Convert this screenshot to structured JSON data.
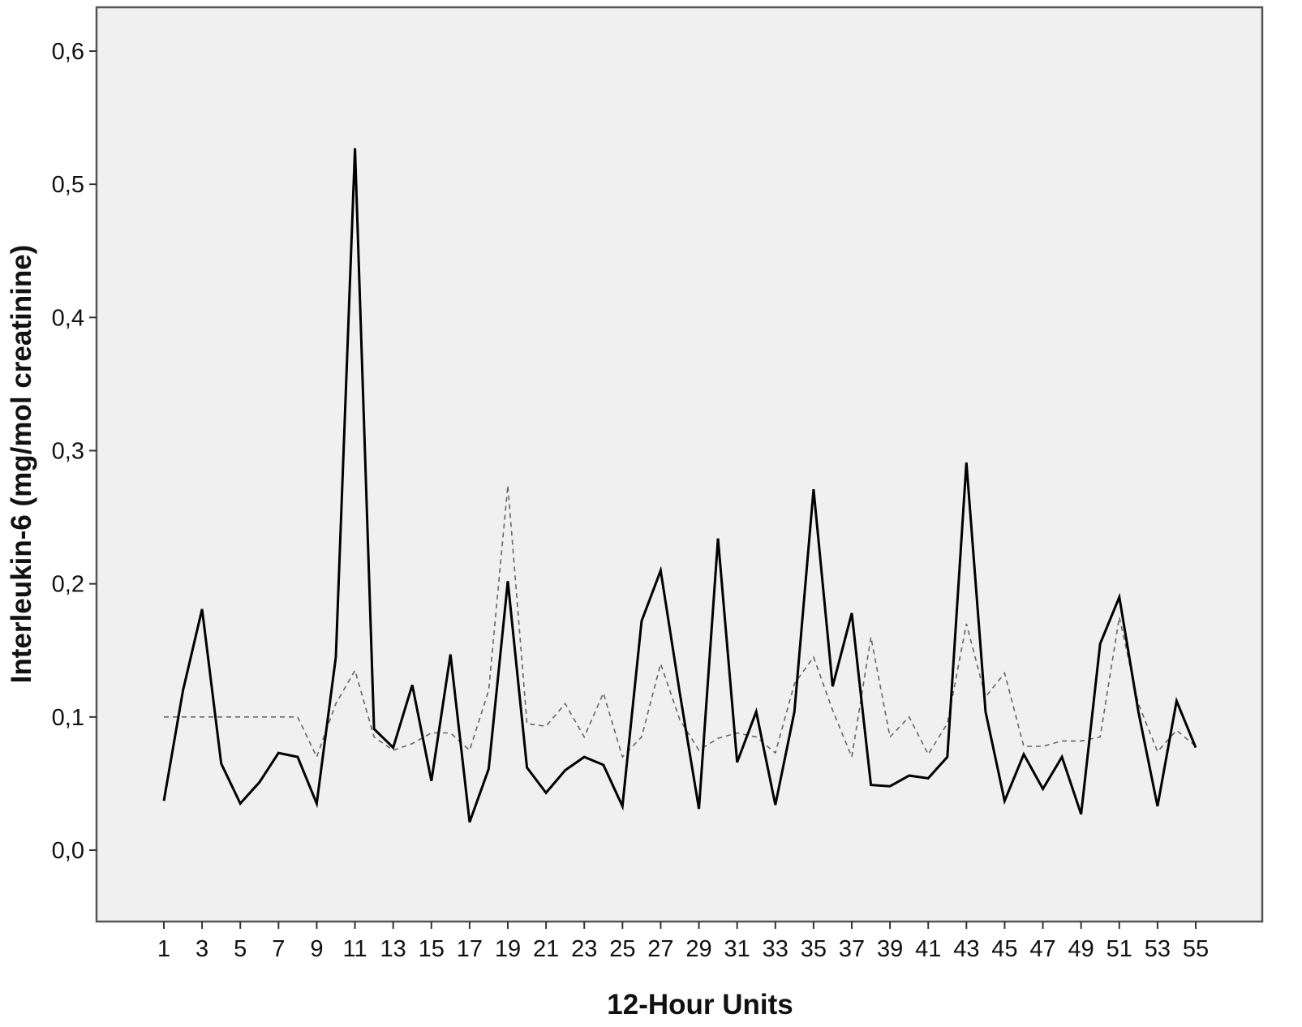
{
  "chart_data": {
    "type": "line",
    "title": "",
    "xlabel": "12-Hour Units",
    "ylabel": "Interleukin-6 (mg/mol creatinine)",
    "xlim": [
      1,
      55
    ],
    "ylim": [
      0.0,
      0.6
    ],
    "x_ticks": [
      1,
      3,
      5,
      7,
      9,
      11,
      13,
      15,
      17,
      19,
      21,
      23,
      25,
      27,
      29,
      31,
      33,
      35,
      37,
      39,
      41,
      43,
      45,
      47,
      49,
      51,
      53,
      55
    ],
    "x_tick_labels": [
      "1",
      "3",
      "5",
      "7",
      "9",
      "11",
      "13",
      "15",
      "17",
      "19",
      "21",
      "23",
      "25",
      "27",
      "29",
      "31",
      "33",
      "35",
      "37",
      "39",
      "41",
      "43",
      "45",
      "47",
      "49",
      "51",
      "53",
      "55"
    ],
    "y_ticks": [
      0.0,
      0.1,
      0.2,
      0.3,
      0.4,
      0.5,
      0.6
    ],
    "y_tick_labels": [
      "0,0",
      "0,1",
      "0,2",
      "0,3",
      "0,4",
      "0,5",
      "0,6"
    ],
    "grid": false,
    "legend": false,
    "plot_background": "#f0f0f0",
    "frame_color": "#555555",
    "x": [
      1,
      2,
      3,
      4,
      5,
      6,
      7,
      8,
      9,
      10,
      11,
      12,
      13,
      14,
      15,
      16,
      17,
      18,
      19,
      20,
      21,
      22,
      23,
      24,
      25,
      26,
      27,
      28,
      29,
      30,
      31,
      32,
      33,
      34,
      35,
      36,
      37,
      38,
      39,
      40,
      41,
      42,
      43,
      44,
      45,
      46,
      47,
      48,
      49,
      50,
      51,
      52,
      53,
      54,
      55
    ],
    "series": [
      {
        "style": "solid",
        "color": "#000000",
        "values": [
          0.037,
          0.12,
          0.181,
          0.065,
          0.035,
          0.051,
          0.073,
          0.07,
          0.035,
          0.145,
          0.527,
          0.091,
          0.077,
          0.124,
          0.052,
          0.147,
          0.021,
          0.061,
          0.202,
          0.062,
          0.043,
          0.06,
          0.07,
          0.064,
          0.033,
          0.172,
          0.21,
          0.118,
          0.031,
          0.234,
          0.066,
          0.104,
          0.034,
          0.104,
          0.271,
          0.123,
          0.178,
          0.049,
          0.048,
          0.056,
          0.054,
          0.07,
          0.291,
          0.104,
          0.037,
          0.072,
          0.046,
          0.07,
          0.027,
          0.155,
          0.19,
          0.104,
          0.033,
          0.112,
          0.077
        ]
      },
      {
        "style": "dashed",
        "color": "#666666",
        "values": [
          0.1,
          0.1,
          0.1,
          0.1,
          0.1,
          0.1,
          0.1,
          0.1,
          0.07,
          0.11,
          0.135,
          0.085,
          0.075,
          0.08,
          0.088,
          0.088,
          0.075,
          0.12,
          0.274,
          0.095,
          0.093,
          0.11,
          0.085,
          0.118,
          0.07,
          0.085,
          0.14,
          0.098,
          0.075,
          0.084,
          0.088,
          0.085,
          0.073,
          0.125,
          0.145,
          0.105,
          0.07,
          0.16,
          0.085,
          0.1,
          0.072,
          0.095,
          0.17,
          0.115,
          0.133,
          0.078,
          0.078,
          0.082,
          0.082,
          0.085,
          0.175,
          0.11,
          0.074,
          0.09,
          0.078
        ]
      }
    ]
  }
}
